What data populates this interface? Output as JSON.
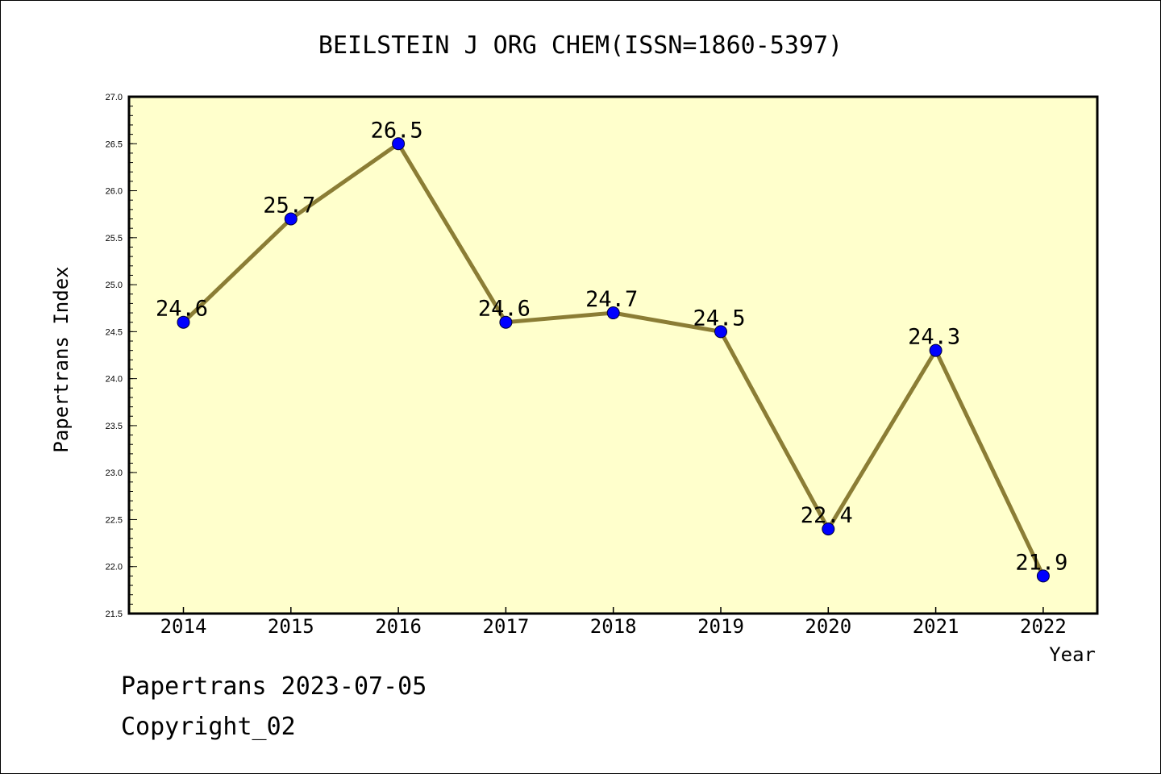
{
  "chart_data": {
    "type": "line",
    "title": "BEILSTEIN J ORG CHEM(ISSN=1860-5397)",
    "xlabel": "Year",
    "ylabel": "Papertrans Index",
    "categories": [
      "2014",
      "2015",
      "2016",
      "2017",
      "2018",
      "2019",
      "2020",
      "2021",
      "2022"
    ],
    "series": [
      {
        "values": [
          24.6,
          25.7,
          26.5,
          24.6,
          24.7,
          24.5,
          22.4,
          24.3,
          21.9
        ],
        "labels": [
          "24.6",
          "25.7",
          "26.5",
          "24.6",
          "24.7",
          "24.5",
          "22.4",
          "24.3",
          "21.9"
        ]
      }
    ],
    "ylim": [
      21.5,
      27.0
    ],
    "yticks": [
      "21.5",
      "22.0",
      "22.5",
      "23.0",
      "23.5",
      "24.0",
      "24.5",
      "25.0",
      "25.5",
      "26.0",
      "26.5",
      "27.0"
    ],
    "grid": false,
    "colors": {
      "plot_background": "#ffffcc",
      "line": "#8b7d35",
      "marker": "#0000ff"
    }
  },
  "footer": {
    "date_line": "Papertrans 2023-07-05",
    "copyright": "Copyright_02"
  }
}
